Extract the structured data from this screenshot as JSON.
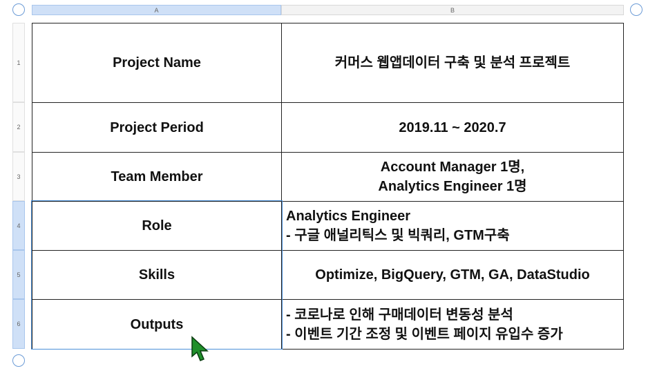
{
  "column_headers": [
    "A",
    "B"
  ],
  "row_headers": [
    "1",
    "2",
    "3",
    "4",
    "5",
    "6"
  ],
  "table": {
    "rows": [
      [
        "Project Name",
        [
          "커머스 웹앱데이터 구축 및 분석 프로젝트"
        ]
      ],
      [
        "Project Period",
        [
          "2019.11 ~ 2020.7"
        ]
      ],
      [
        "Team Member",
        [
          "Account Manager 1명,",
          "Analytics Engineer 1명"
        ]
      ],
      [
        "Role",
        [
          "Analytics Engineer",
          "- 구글 애널리틱스 및 빅쿼리, GTM구축"
        ]
      ],
      [
        "Skills",
        [
          "Optimize, BigQuery, GTM, GA, DataStudio"
        ]
      ],
      [
        "Outputs",
        [
          "- 코로나로 인해 구매데이터 변동성 분석",
          "- 이벤트 기간 조정 및 이벤트 페이지 유입수 증가"
        ]
      ]
    ]
  }
}
